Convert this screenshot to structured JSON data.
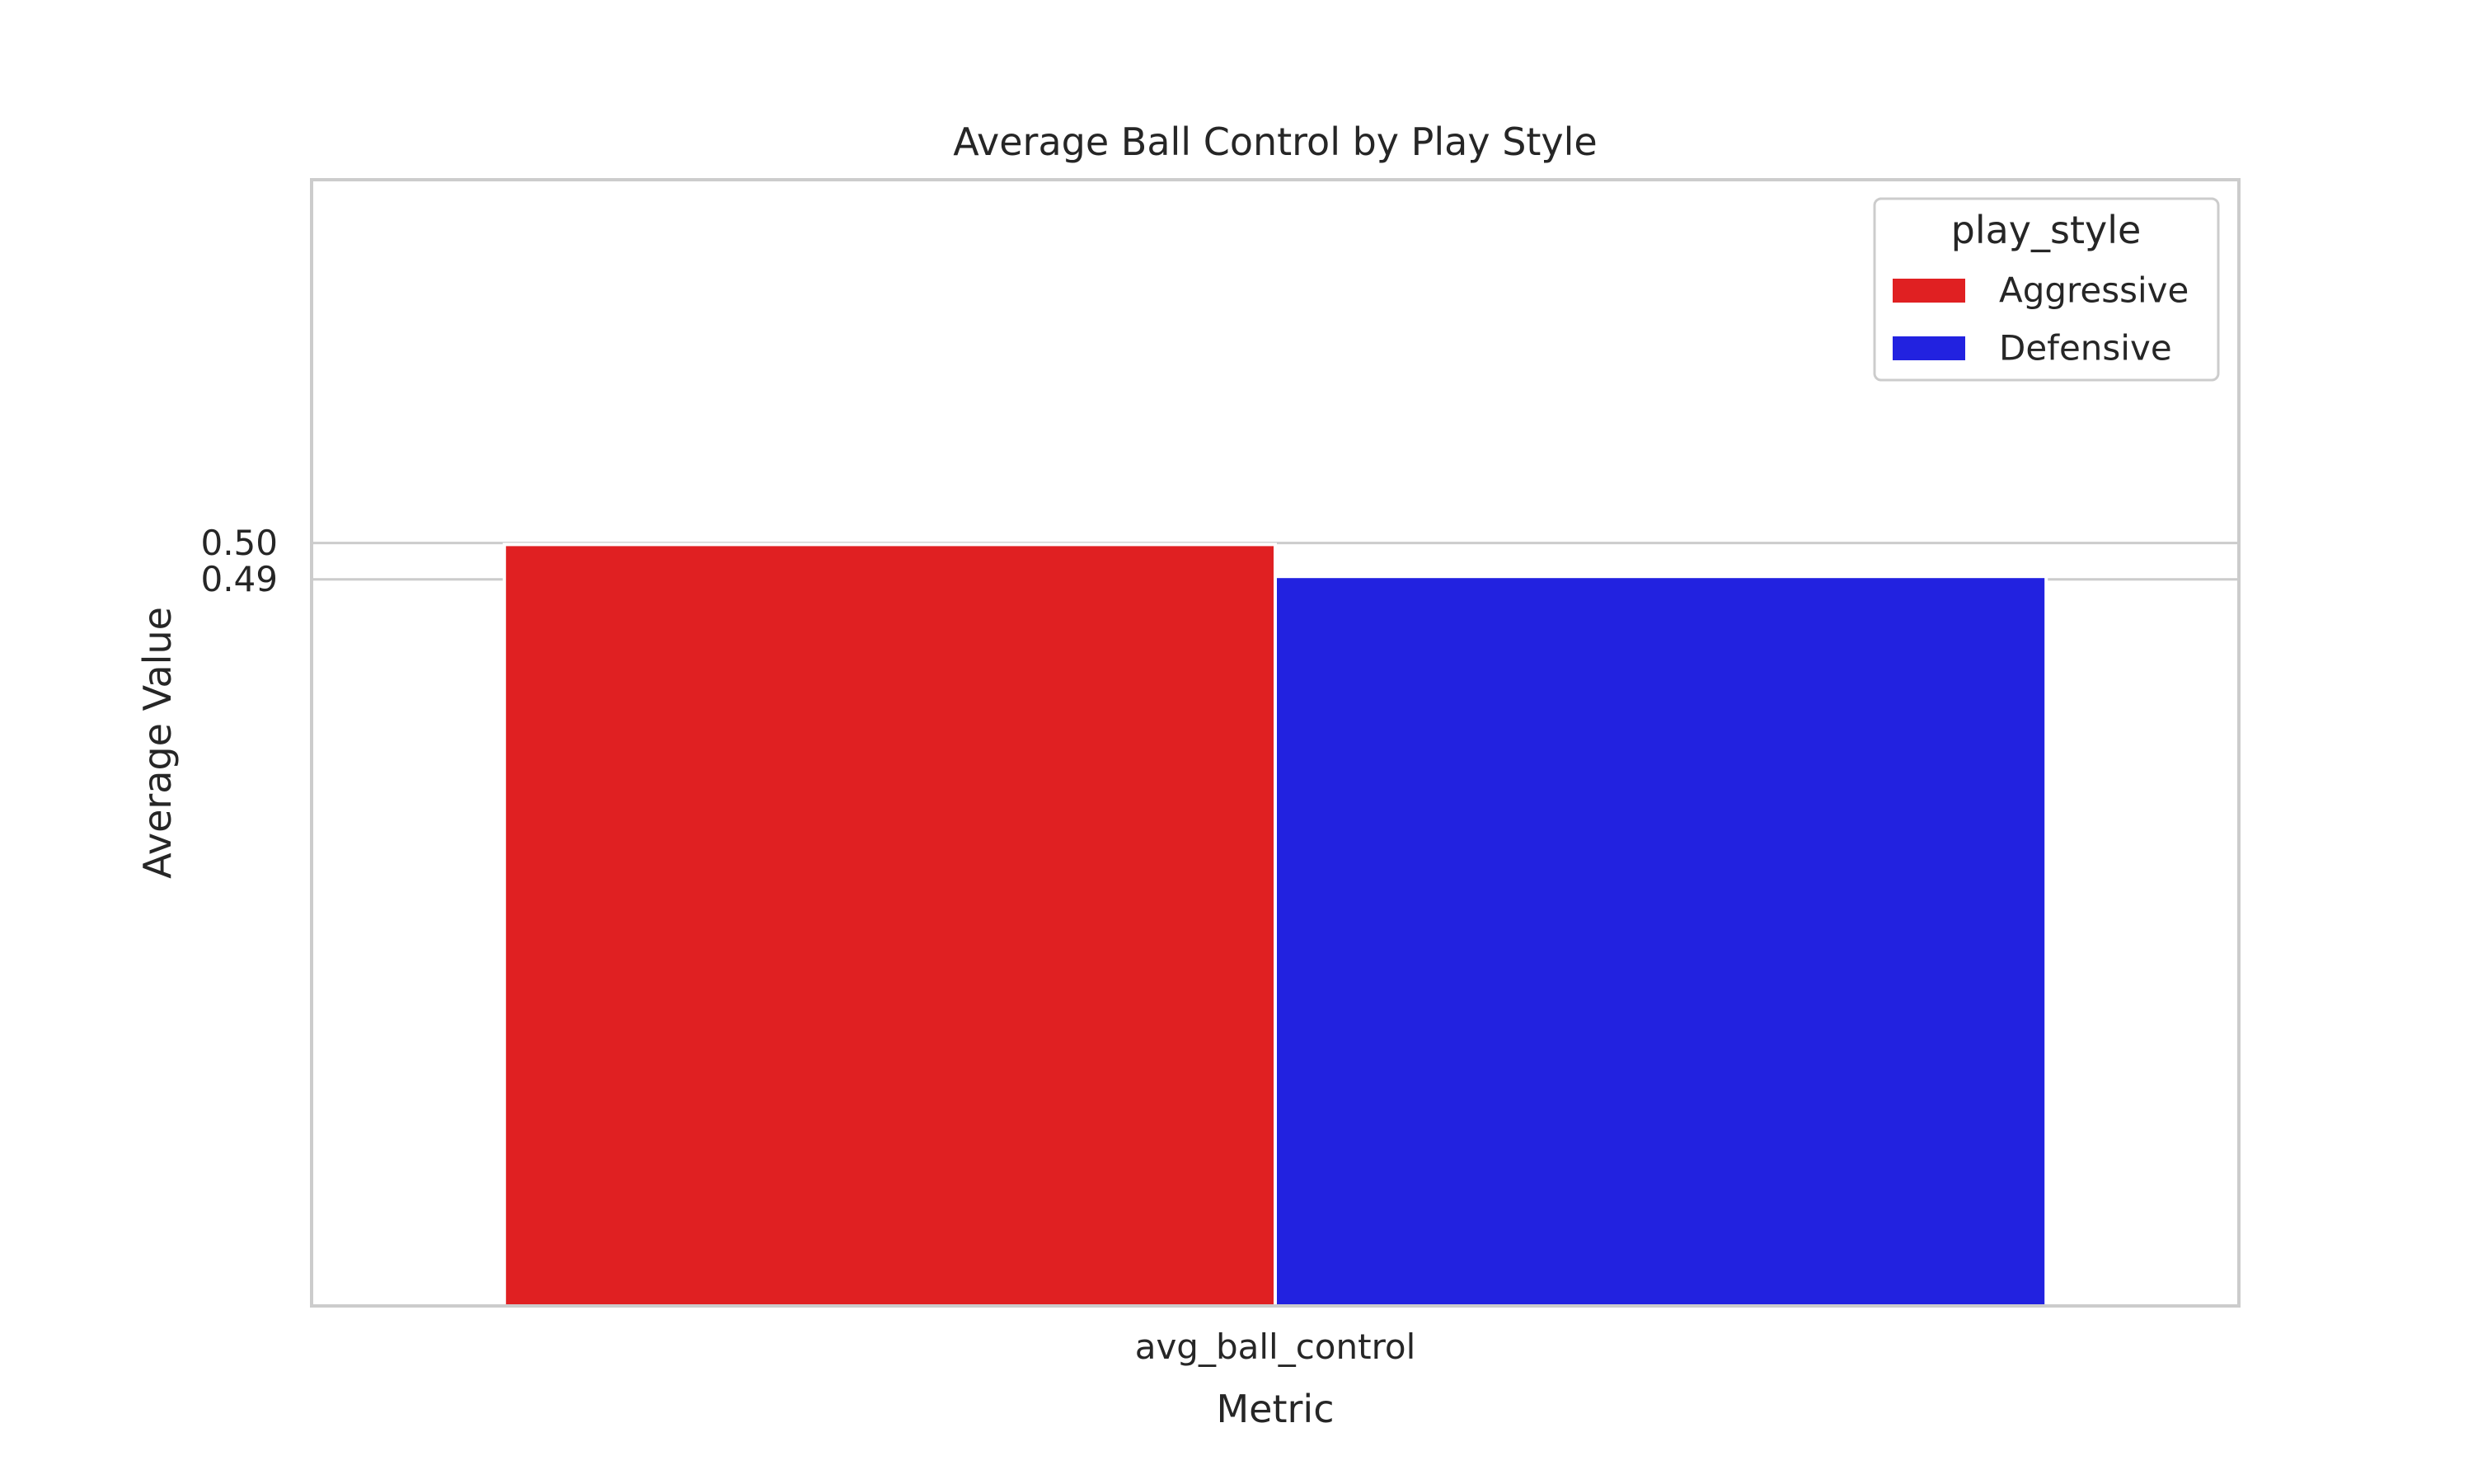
{
  "chart_data": {
    "type": "bar",
    "title": "Average Ball Control by Play Style",
    "xlabel": "Metric",
    "ylabel": "Average Value",
    "categories": [
      "avg_ball_control"
    ],
    "series": [
      {
        "name": "Aggressive",
        "values": [
          0.4996
        ],
        "color": "#e02022"
      },
      {
        "name": "Defensive",
        "values": [
          0.4908
        ],
        "color": "#2222e0"
      }
    ],
    "yticks": [
      {
        "value": 0.49,
        "label": "0.49"
      },
      {
        "value": 0.5,
        "label": "0.50"
      }
    ],
    "ylim": [
      0.29,
      0.6
    ],
    "grid": true,
    "legend": {
      "title": "play_style",
      "placement": "top-right"
    }
  }
}
